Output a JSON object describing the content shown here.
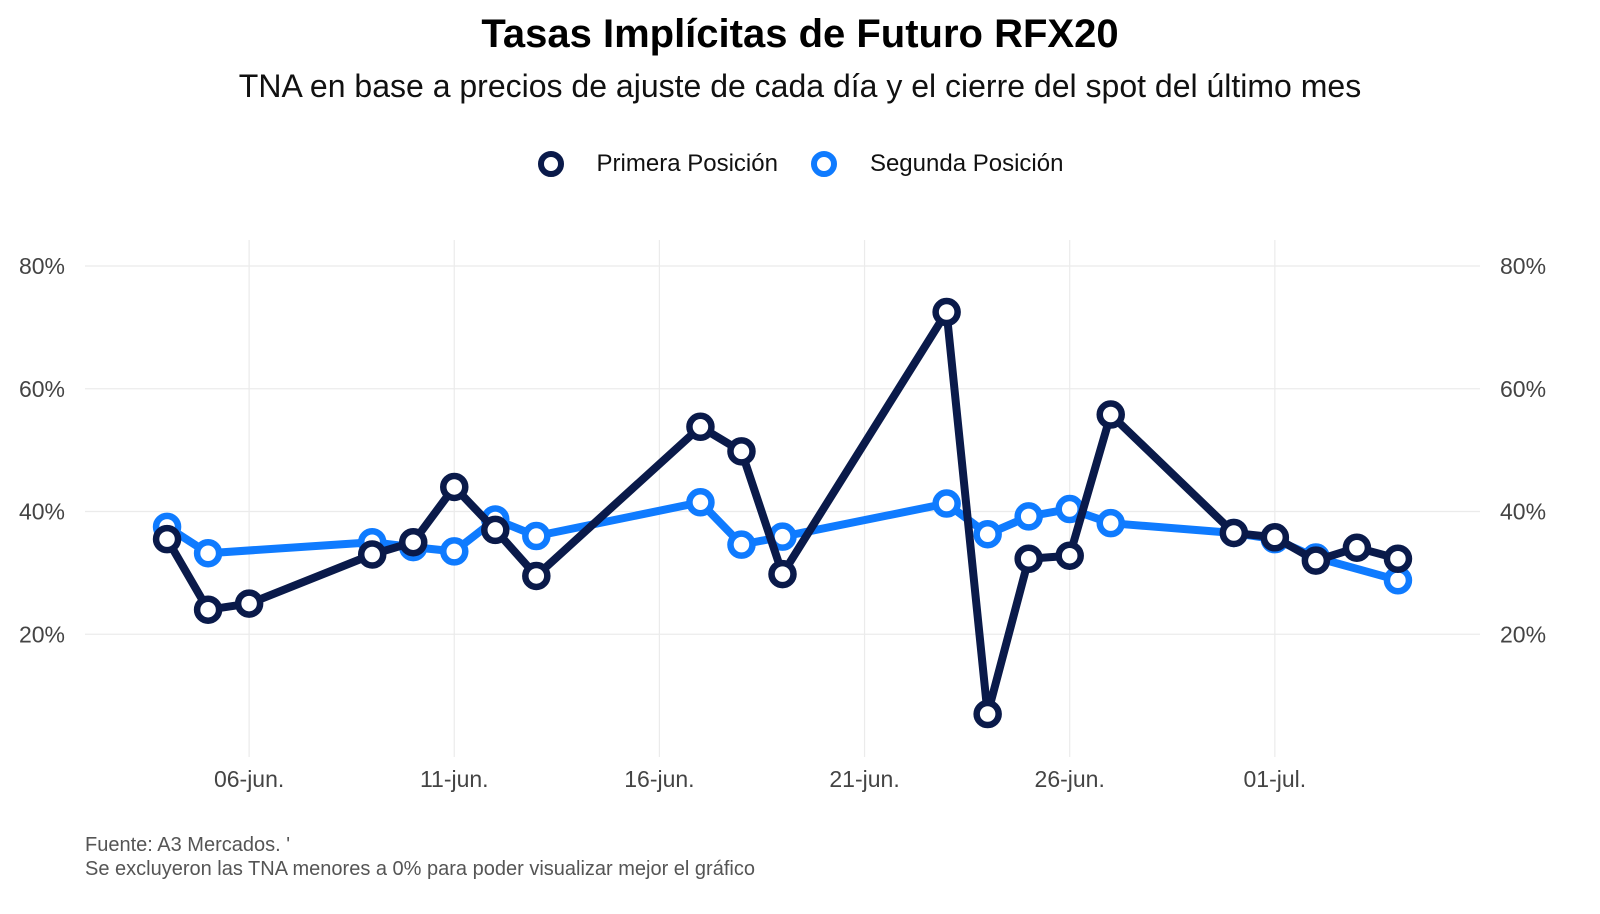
{
  "title": "Tasas Implícitas de Futuro RFX20",
  "subtitle": "TNA en base a precios de ajuste de cada día y el cierre del spot del último mes",
  "caption_lines": [
    "Fuente: A3 Mercados. '",
    "Se excluyeron las TNA menores a 0% para poder visualizar mejor el gráfico"
  ],
  "chart_data": {
    "type": "line",
    "x_axis": {
      "type": "date",
      "ticks": [
        {
          "date": "2025-06-06",
          "label": "06-jun."
        },
        {
          "date": "2025-06-11",
          "label": "11-jun."
        },
        {
          "date": "2025-06-16",
          "label": "16-jun."
        },
        {
          "date": "2025-06-21",
          "label": "21-jun."
        },
        {
          "date": "2025-06-26",
          "label": "26-jun."
        },
        {
          "date": "2025-07-01",
          "label": "01-jul."
        }
      ],
      "range": [
        "2025-06-02",
        "2025-07-06"
      ]
    },
    "y_axis": {
      "unit": "%",
      "ticks": [
        20,
        40,
        60,
        80
      ],
      "tick_labels": [
        "20%",
        "40%",
        "60%",
        "80%"
      ],
      "range": [
        0,
        80
      ],
      "sides": "both"
    },
    "grid": true,
    "legend_position": "top",
    "series": [
      {
        "name": "Primera Posición",
        "color": "#0a1a4a",
        "points": [
          {
            "x": "2025-06-04",
            "y": 35.5
          },
          {
            "x": "2025-06-05",
            "y": 24.0
          },
          {
            "x": "2025-06-06",
            "y": 25.0
          },
          {
            "x": "2025-06-09",
            "y": 33.0
          },
          {
            "x": "2025-06-10",
            "y": 35.0
          },
          {
            "x": "2025-06-11",
            "y": 44.0
          },
          {
            "x": "2025-06-12",
            "y": 37.0
          },
          {
            "x": "2025-06-13",
            "y": 29.5
          },
          {
            "x": "2025-06-17",
            "y": 53.8
          },
          {
            "x": "2025-06-18",
            "y": 49.8
          },
          {
            "x": "2025-06-19",
            "y": 29.8
          },
          {
            "x": "2025-06-23",
            "y": 72.5
          },
          {
            "x": "2025-06-24",
            "y": 7.0
          },
          {
            "x": "2025-06-25",
            "y": 32.3
          },
          {
            "x": "2025-06-26",
            "y": 32.8
          },
          {
            "x": "2025-06-27",
            "y": 55.8
          },
          {
            "x": "2025-06-30",
            "y": 36.5
          },
          {
            "x": "2025-07-01",
            "y": 35.8
          },
          {
            "x": "2025-07-02",
            "y": 32.0
          },
          {
            "x": "2025-07-03",
            "y": 34.1
          },
          {
            "x": "2025-07-04",
            "y": 32.3
          }
        ]
      },
      {
        "name": "Segunda Posición",
        "color": "#0f7bff",
        "points": [
          {
            "x": "2025-06-04",
            "y": 37.5
          },
          {
            "x": "2025-06-05",
            "y": 33.2
          },
          {
            "x": "2025-06-09",
            "y": 35.0
          },
          {
            "x": "2025-06-10",
            "y": 34.2
          },
          {
            "x": "2025-06-11",
            "y": 33.5
          },
          {
            "x": "2025-06-12",
            "y": 38.7
          },
          {
            "x": "2025-06-13",
            "y": 36.0
          },
          {
            "x": "2025-06-17",
            "y": 41.5
          },
          {
            "x": "2025-06-18",
            "y": 34.6
          },
          {
            "x": "2025-06-19",
            "y": 35.9
          },
          {
            "x": "2025-06-23",
            "y": 41.3
          },
          {
            "x": "2025-06-24",
            "y": 36.3
          },
          {
            "x": "2025-06-25",
            "y": 39.2
          },
          {
            "x": "2025-06-26",
            "y": 40.4
          },
          {
            "x": "2025-06-27",
            "y": 38.1
          },
          {
            "x": "2025-06-30",
            "y": 36.5
          },
          {
            "x": "2025-07-01",
            "y": 35.5
          },
          {
            "x": "2025-07-02",
            "y": 32.5
          },
          {
            "x": "2025-07-04",
            "y": 28.8
          }
        ]
      }
    ]
  }
}
